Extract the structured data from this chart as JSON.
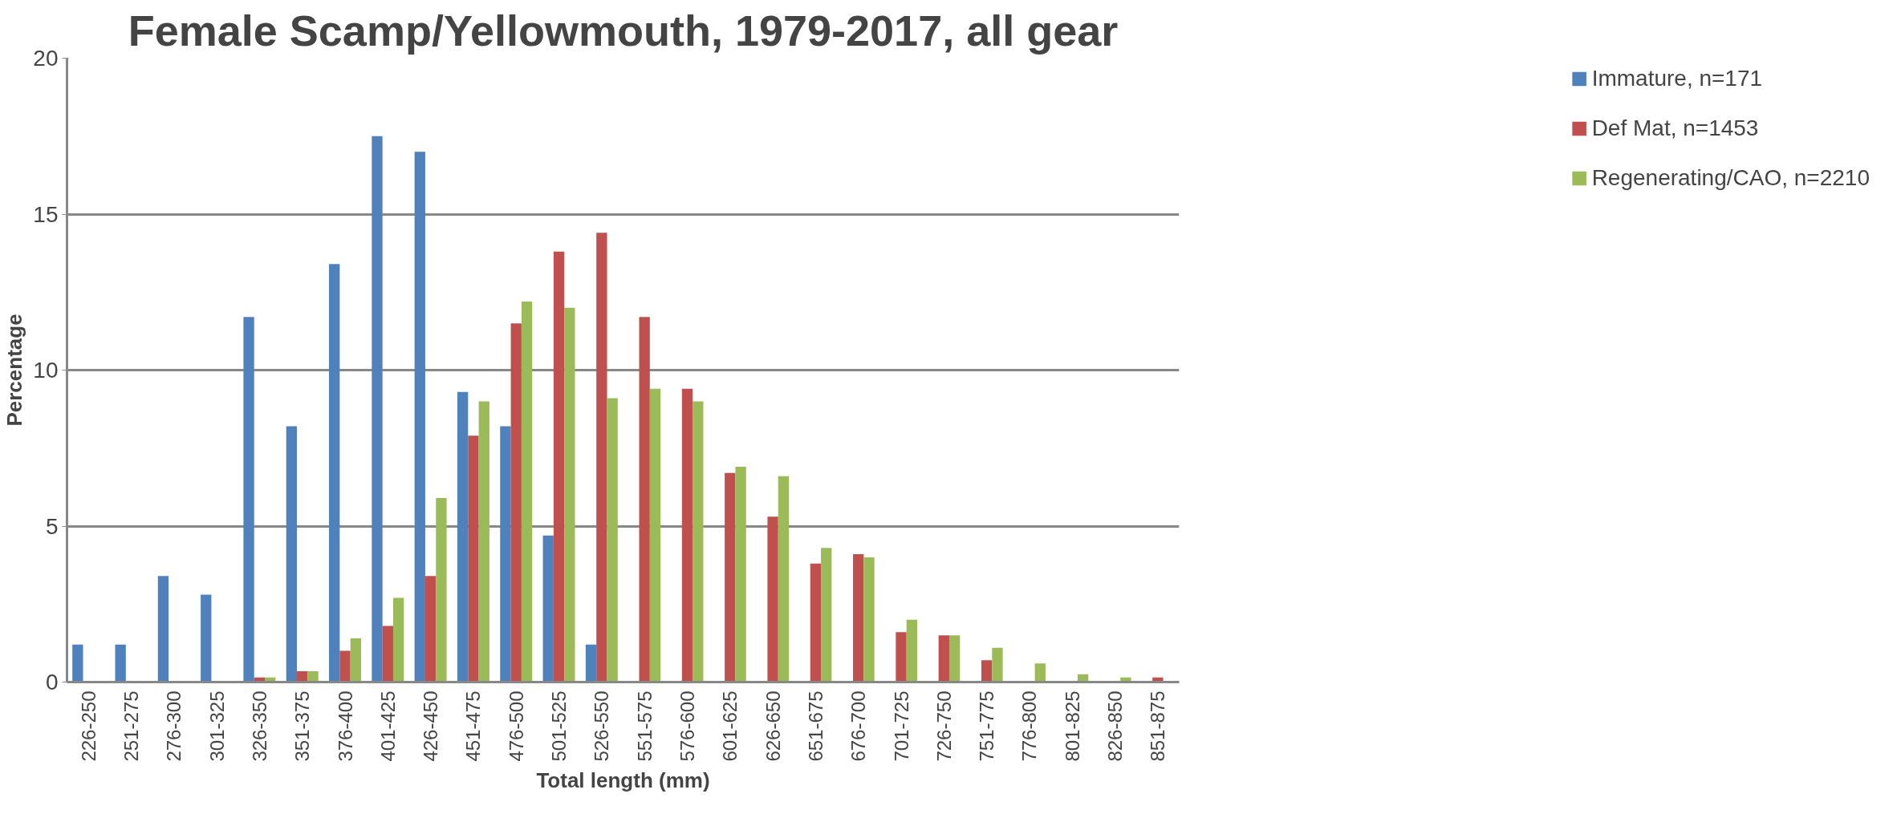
{
  "chart_data": {
    "type": "bar",
    "title": "Female Scamp/Yellowmouth, 1979-2017, all gear",
    "xlabel": "Total length (mm)",
    "ylabel": "Percentage",
    "categories": [
      "226-250",
      "251-275",
      "276-300",
      "301-325",
      "326-350",
      "351-375",
      "376-400",
      "401-425",
      "426-450",
      "451-475",
      "476-500",
      "501-525",
      "526-550",
      "551-575",
      "576-600",
      "601-625",
      "626-650",
      "651-675",
      "676-700",
      "701-725",
      "726-750",
      "751-775",
      "776-800",
      "801-825",
      "826-850",
      "851-875"
    ],
    "series": [
      {
        "name": "Immature, n=171",
        "color": "#4f81bd",
        "values": [
          1.2,
          1.2,
          3.4,
          2.8,
          11.7,
          8.2,
          13.4,
          17.5,
          17.0,
          9.3,
          8.2,
          4.7,
          1.2,
          0,
          0,
          0,
          0,
          0,
          0,
          0,
          0,
          0,
          0,
          0,
          0,
          0
        ]
      },
      {
        "name": "Def Mat, n=1453",
        "color": "#c0504d",
        "values": [
          0,
          0,
          0,
          0,
          0.15,
          0.35,
          1.0,
          1.8,
          3.4,
          7.9,
          11.5,
          13.8,
          14.4,
          11.7,
          9.4,
          6.7,
          5.3,
          3.8,
          4.1,
          1.6,
          1.5,
          0.7,
          0,
          0,
          0,
          0.15
        ]
      },
      {
        "name": "Regenerating/CAO, n=2210",
        "color": "#9bbb59",
        "values": [
          0,
          0,
          0,
          0,
          0.15,
          0.35,
          1.4,
          2.7,
          5.9,
          9.0,
          12.2,
          12.0,
          9.1,
          9.4,
          9.0,
          6.9,
          6.6,
          4.3,
          4.0,
          2.0,
          1.5,
          1.1,
          0.6,
          0.25,
          0.15,
          0
        ]
      }
    ],
    "ylim": [
      0,
      20
    ],
    "yticks": [
      0,
      5,
      10,
      15,
      20
    ],
    "grid": "y",
    "legend": "right"
  }
}
